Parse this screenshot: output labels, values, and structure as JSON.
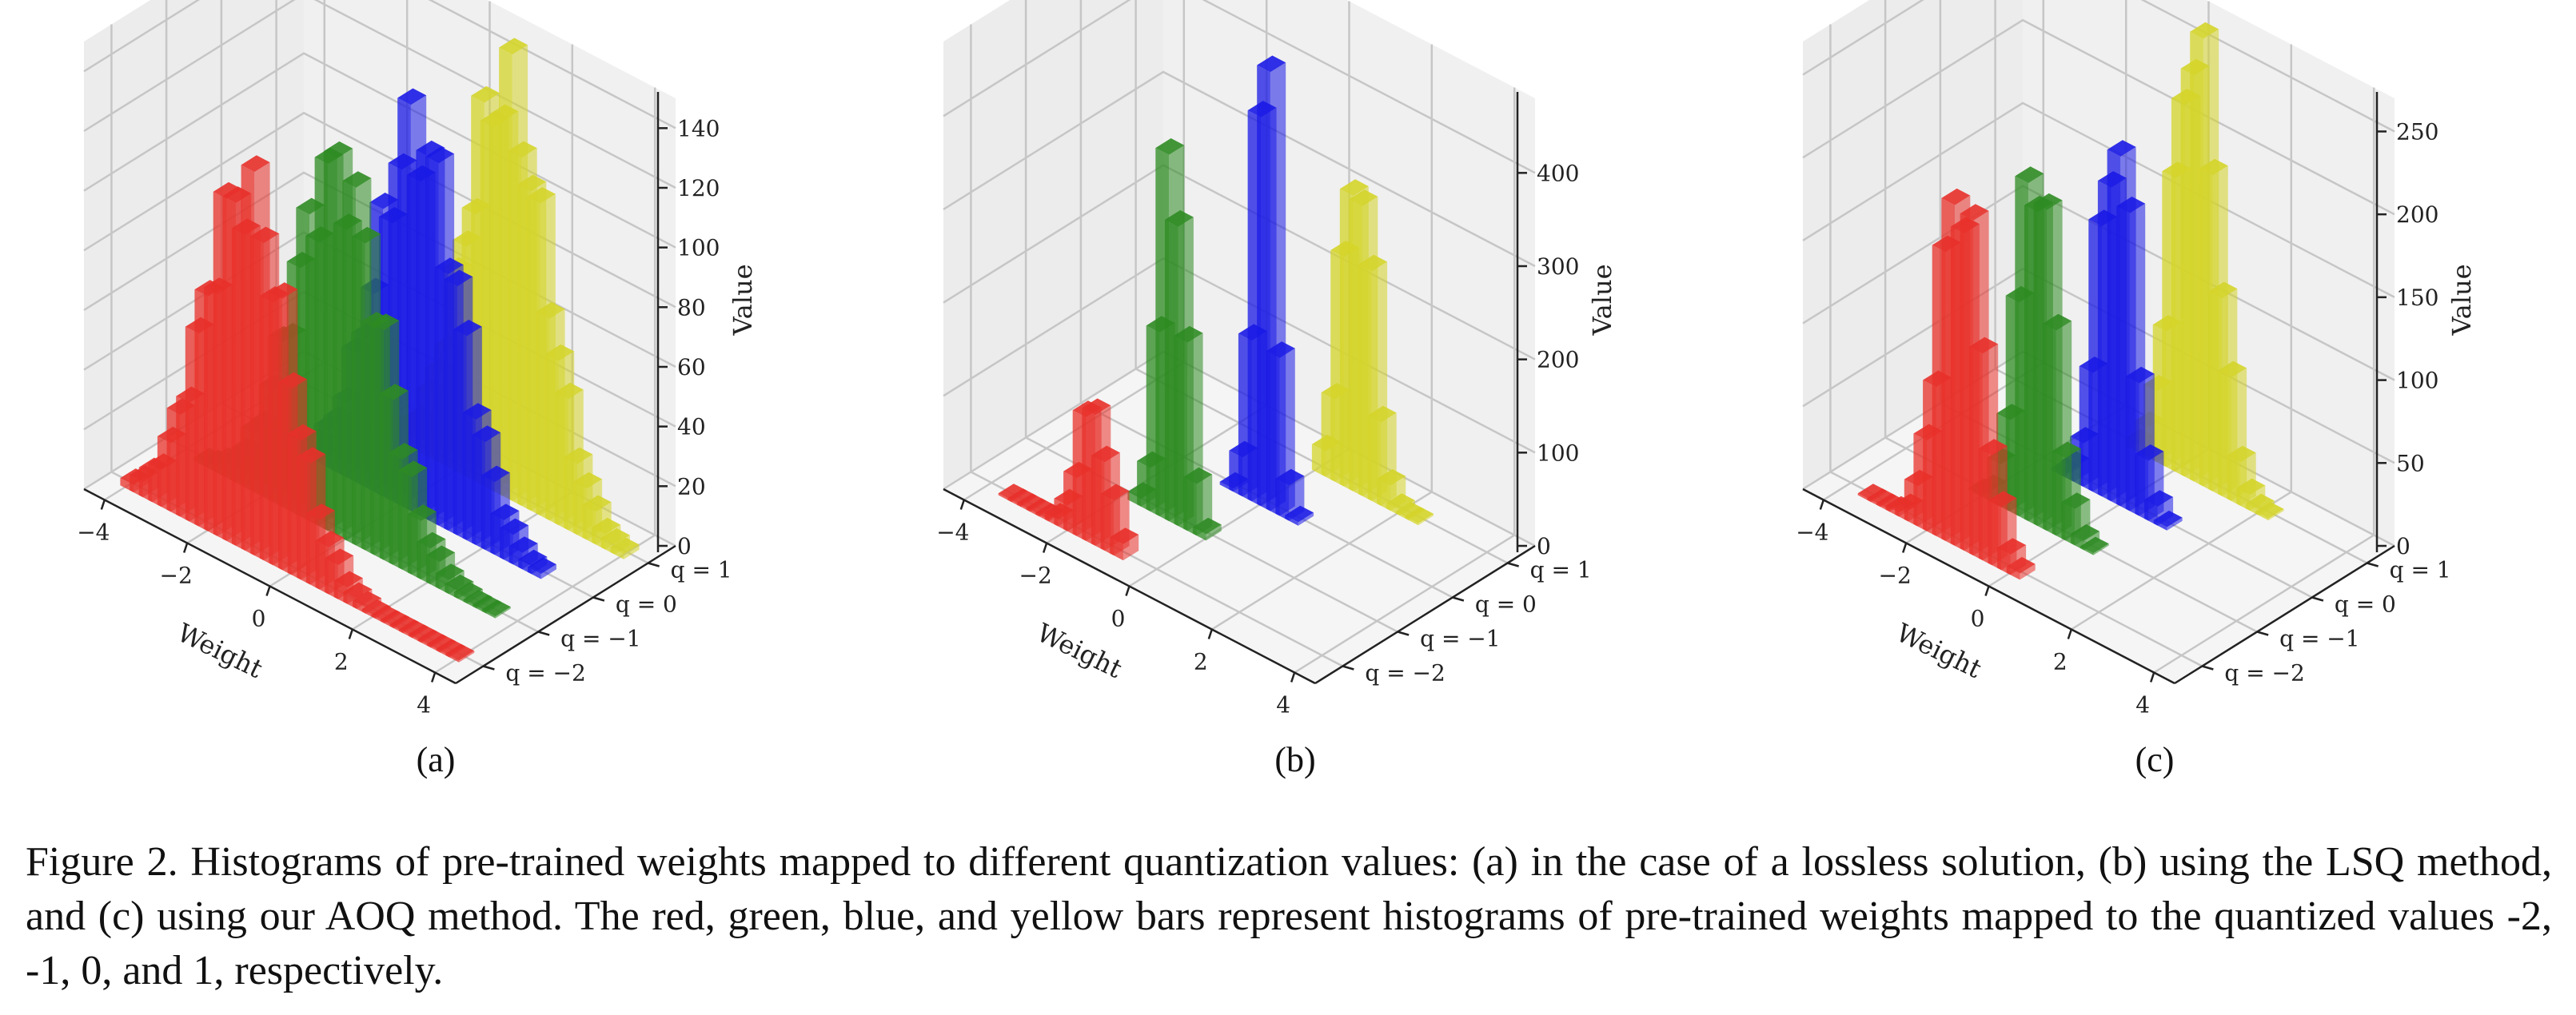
{
  "chart_data": [
    {
      "type": "bar3d",
      "panel_label": "(a)",
      "xlabel": "Weight",
      "zlabel": "Value",
      "x_ticks": [
        "−4",
        "−2",
        "0",
        "2",
        "4"
      ],
      "x_tick_values": [
        -4,
        -2,
        0,
        2,
        4
      ],
      "xlim": [
        -4.5,
        4.5
      ],
      "y_ticks": [
        "q = −2",
        "q = −1",
        "q = 0",
        "q = 1"
      ],
      "z_ticks": [
        "0",
        "20",
        "40",
        "60",
        "80",
        "100",
        "120",
        "140"
      ],
      "z_tick_values": [
        0,
        20,
        40,
        60,
        80,
        100,
        120,
        140
      ],
      "zlim": [
        0,
        150
      ],
      "series": [
        {
          "q": -2,
          "color": "#e8302a",
          "center": -1.2,
          "sigma": 1.0,
          "peak": 118,
          "xmin": -4.0,
          "xmax": 4.0
        },
        {
          "q": -1,
          "color": "#2e8b22",
          "center": -0.3,
          "sigma": 1.05,
          "peak": 120,
          "xmin": -3.6,
          "xmax": 3.6
        },
        {
          "q": 0,
          "color": "#1a1ae6",
          "center": 0.3,
          "sigma": 1.0,
          "peak": 125,
          "xmin": -3.0,
          "xmax": 3.4
        },
        {
          "q": 1,
          "color": "#d4d42a",
          "center": 1.1,
          "sigma": 0.95,
          "peak": 135,
          "xmin": -1.8,
          "xmax": 4.0
        }
      ]
    },
    {
      "type": "bar3d",
      "panel_label": "(b)",
      "xlabel": "Weight",
      "zlabel": "Value",
      "x_ticks": [
        "−4",
        "−2",
        "0",
        "2",
        "4"
      ],
      "x_tick_values": [
        -4,
        -2,
        0,
        2,
        4
      ],
      "xlim": [
        -4.5,
        4.5
      ],
      "y_ticks": [
        "q = −2",
        "q = −1",
        "q = 0",
        "q = 1"
      ],
      "z_ticks": [
        "0",
        "100",
        "200",
        "300",
        "400"
      ],
      "z_tick_values": [
        0,
        100,
        200,
        300,
        400
      ],
      "zlim": [
        0,
        480
      ],
      "series": [
        {
          "q": -2,
          "color": "#e8302a",
          "center": -1.5,
          "sigma": 0.35,
          "peak": 140,
          "xmin": -3.6,
          "xmax": -0.6
        },
        {
          "q": -1,
          "color": "#2e8b22",
          "center": -0.9,
          "sigma": 0.28,
          "peak": 395,
          "xmin": -1.9,
          "xmax": 0.0
        },
        {
          "q": 0,
          "color": "#1a1ae6",
          "center": 0.0,
          "sigma": 0.25,
          "peak": 470,
          "xmin": -0.8,
          "xmax": 0.9
        },
        {
          "q": 1,
          "color": "#d4d42a",
          "center": 0.9,
          "sigma": 0.35,
          "peak": 350,
          "xmin": 0.0,
          "xmax": 2.5
        }
      ]
    },
    {
      "type": "bar3d",
      "panel_label": "(c)",
      "xlabel": "Weight",
      "zlabel": "Value",
      "x_ticks": [
        "−4",
        "−2",
        "0",
        "2",
        "4"
      ],
      "x_tick_values": [
        -4,
        -2,
        0,
        2,
        4
      ],
      "xlim": [
        -4.5,
        4.5
      ],
      "y_ticks": [
        "q = −2",
        "q = −1",
        "q = 0",
        "q = 1"
      ],
      "z_ticks": [
        "0",
        "50",
        "100",
        "150",
        "200",
        "250"
      ],
      "z_tick_values": [
        0,
        50,
        100,
        150,
        200,
        250
      ],
      "zlim": [
        0,
        270
      ],
      "series": [
        {
          "q": -2,
          "color": "#e8302a",
          "center": -1.3,
          "sigma": 0.5,
          "peak": 215,
          "xmin": -3.6,
          "xmax": 0.3
        },
        {
          "q": -1,
          "color": "#2e8b22",
          "center": -0.8,
          "sigma": 0.42,
          "peak": 215,
          "xmin": -2.2,
          "xmax": 0.6
        },
        {
          "q": 0,
          "color": "#1a1ae6",
          "center": -0.2,
          "sigma": 0.4,
          "peak": 220,
          "xmin": -1.6,
          "xmax": 1.2
        },
        {
          "q": 1,
          "color": "#d4d42a",
          "center": 0.4,
          "sigma": 0.5,
          "peak": 270,
          "xmin": -1.2,
          "xmax": 2.3
        }
      ]
    }
  ],
  "caption": {
    "text": "Figure 2. Histograms of pre-trained weights mapped to different quantization values: (a) in the case of a lossless solution, (b) using the LSQ method, and (c) using our AOQ method. The red, green, blue, and yellow bars represent histograms of pre-trained weights mapped to the quantized values -2, -1, 0, and 1, respectively."
  }
}
